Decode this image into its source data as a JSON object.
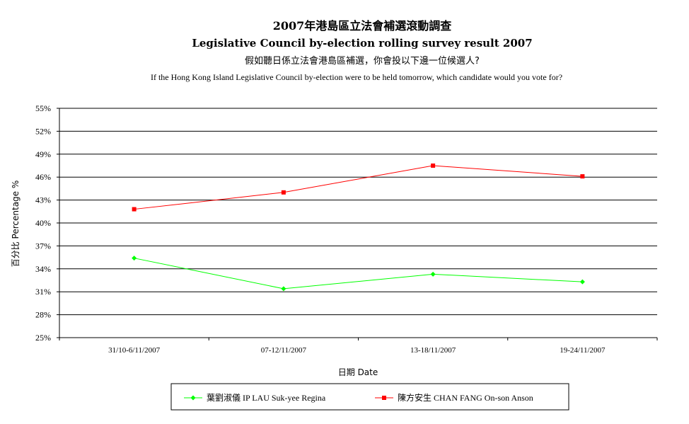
{
  "chart_data": {
    "type": "line",
    "title": "2007年港島區立法會補選滾動調查",
    "subtitle_en": "Legislative Council by-election rolling survey result 2007",
    "question_zh": "假如聽日係立法會港島區補選，你會投以下邊一位候選人?",
    "question_en": "If the Hong Kong Island Legislative Council by-election were to be held tomorrow, which candidate would you vote for?",
    "xlabel": "日期 Date",
    "ylabel": "百分比 Percentage %",
    "categories": [
      "31/10-6/11/2007",
      "07-12/11/2007",
      "13-18/11/2007",
      "19-24/11/2007"
    ],
    "ylim": [
      25,
      55
    ],
    "yticks": [
      "25%",
      "28%",
      "31%",
      "34%",
      "37%",
      "40%",
      "43%",
      "46%",
      "49%",
      "52%",
      "55%"
    ],
    "ytick_values": [
      25,
      28,
      31,
      34,
      37,
      40,
      43,
      46,
      49,
      52,
      55
    ],
    "grid": true,
    "legend_position": "bottom",
    "series": [
      {
        "name": "葉劉淑儀 IP LAU Suk-yee Regina",
        "color": "#00ff00",
        "marker": "diamond",
        "values": [
          35.4,
          31.4,
          33.3,
          32.3
        ]
      },
      {
        "name": "陳方安生 CHAN FANG On-son Anson",
        "color": "#ff0000",
        "marker": "square",
        "values": [
          41.8,
          44.0,
          47.5,
          46.1
        ]
      }
    ]
  }
}
